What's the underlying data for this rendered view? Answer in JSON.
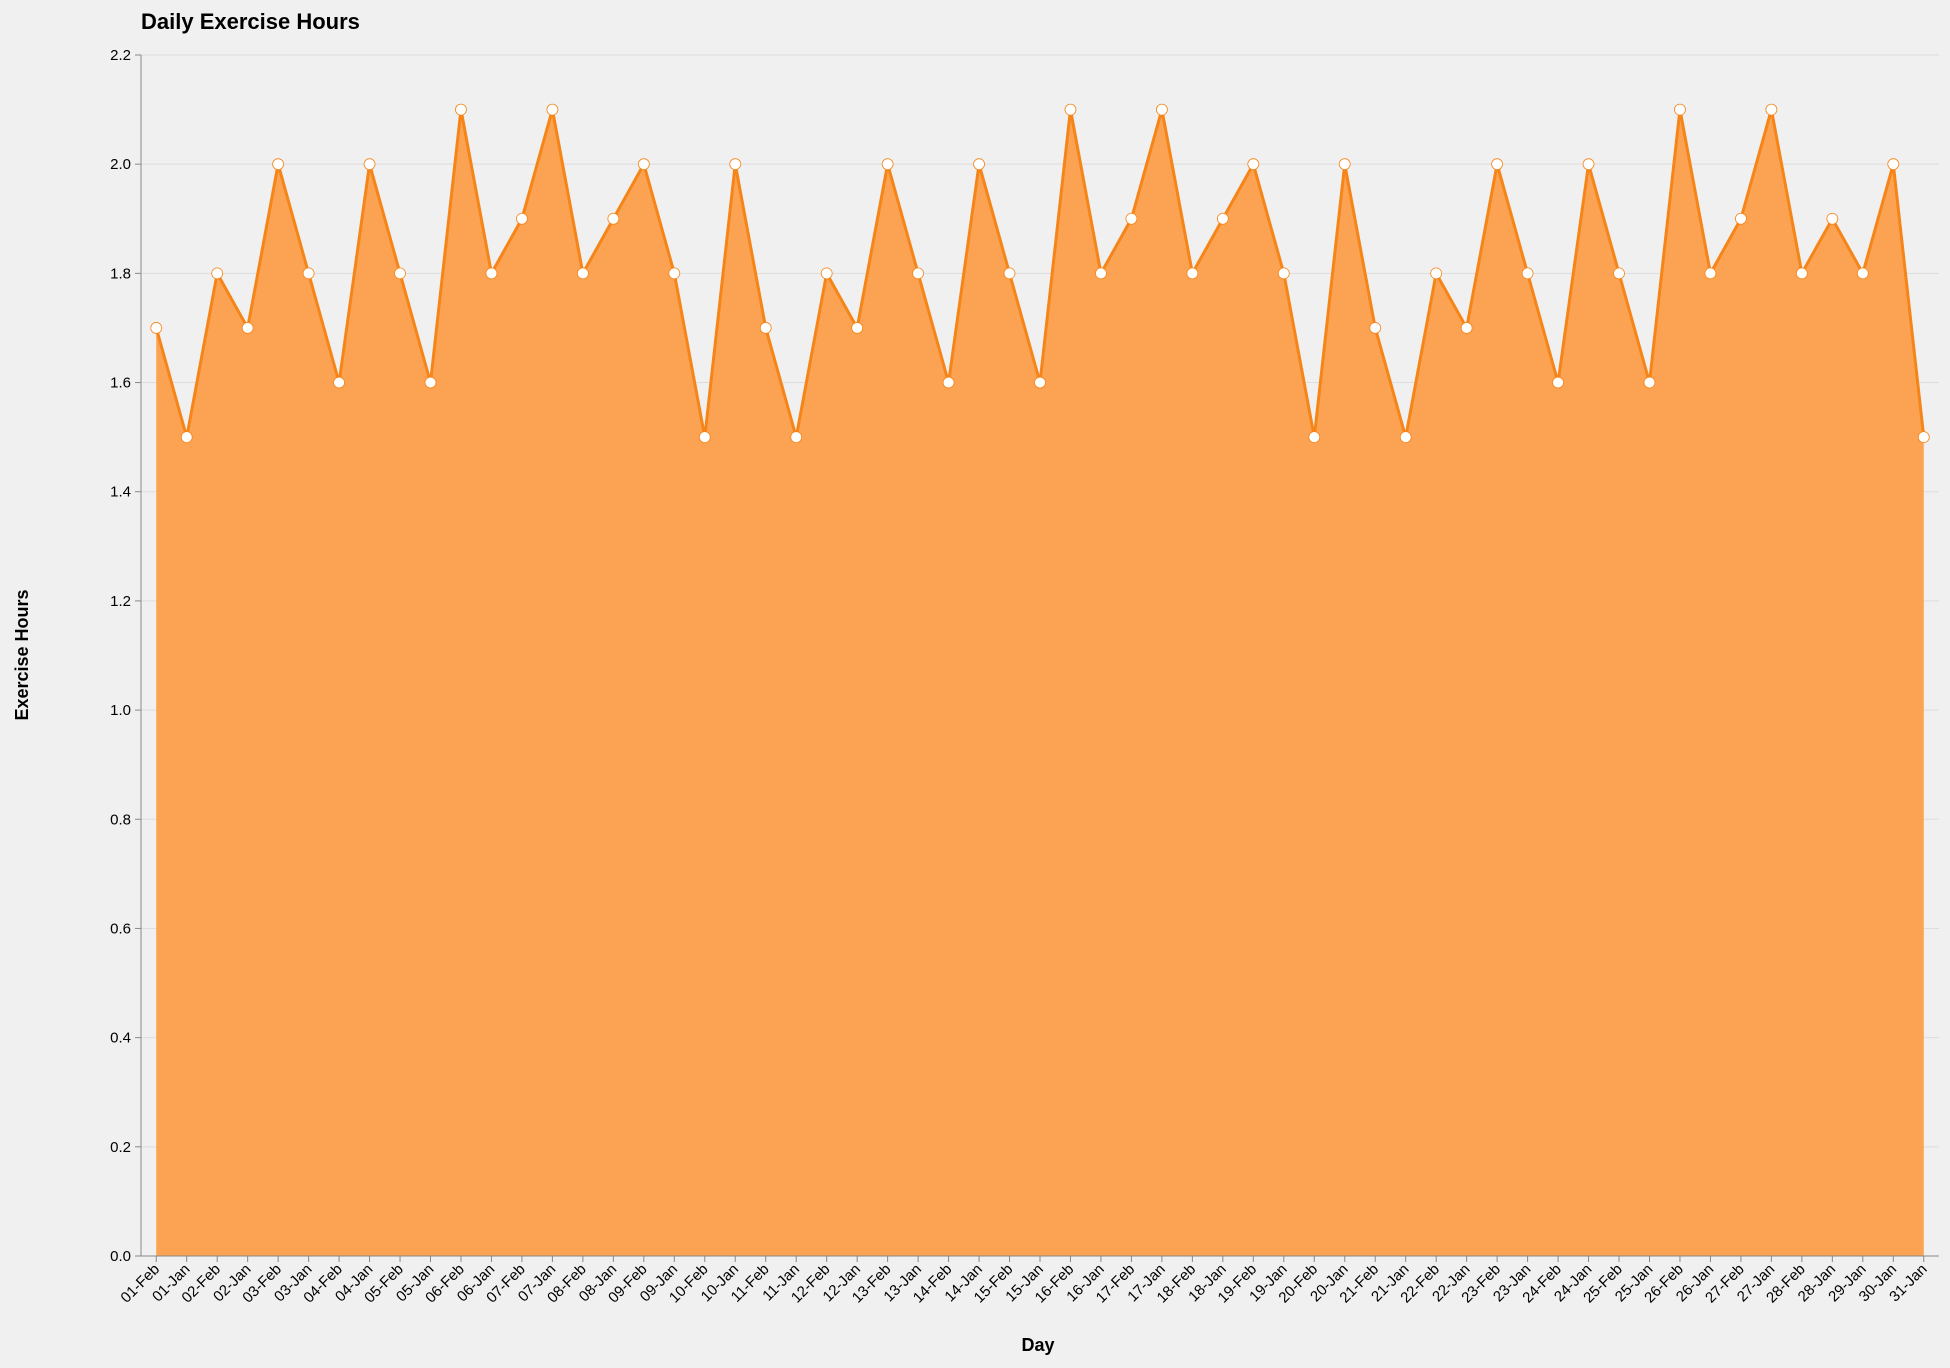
{
  "chart_data": {
    "type": "area",
    "title": "Daily Exercise Hours",
    "xlabel": "Day",
    "ylabel": "Exercise Hours",
    "ylim": [
      0,
      2.2
    ],
    "yticks": [
      0.0,
      0.2,
      0.4,
      0.6,
      0.8,
      1.0,
      1.2,
      1.4,
      1.6,
      1.8,
      2.0,
      2.2
    ],
    "grid": true,
    "legend": "none",
    "colors": {
      "fill": "#fba352",
      "line": "#f58518",
      "point": "#ffffff",
      "grid": "#dddddd",
      "axis": "#888888"
    },
    "categories": [
      "01-Feb",
      "01-Jan",
      "02-Feb",
      "02-Jan",
      "03-Feb",
      "03-Jan",
      "04-Feb",
      "04-Jan",
      "05-Feb",
      "05-Jan",
      "06-Feb",
      "06-Jan",
      "07-Feb",
      "07-Jan",
      "08-Feb",
      "08-Jan",
      "09-Feb",
      "09-Jan",
      "10-Feb",
      "10-Jan",
      "11-Feb",
      "11-Jan",
      "12-Feb",
      "12-Jan",
      "13-Feb",
      "13-Jan",
      "14-Feb",
      "14-Jan",
      "15-Feb",
      "15-Jan",
      "16-Feb",
      "16-Jan",
      "17-Feb",
      "17-Jan",
      "18-Feb",
      "18-Jan",
      "19-Feb",
      "19-Jan",
      "20-Feb",
      "20-Jan",
      "21-Feb",
      "21-Jan",
      "22-Feb",
      "22-Jan",
      "23-Feb",
      "23-Jan",
      "24-Feb",
      "24-Jan",
      "25-Feb",
      "25-Jan",
      "26-Feb",
      "26-Jan",
      "27-Feb",
      "27-Jan",
      "28-Feb",
      "28-Jan",
      "29-Jan",
      "30-Jan",
      "31-Jan"
    ],
    "values": [
      1.7,
      1.5,
      1.8,
      1.7,
      2.0,
      1.8,
      1.6,
      2.0,
      1.8,
      1.6,
      2.1,
      1.8,
      1.9,
      2.1,
      1.8,
      1.9,
      2.0,
      1.8,
      1.5,
      2.0,
      1.7,
      1.5,
      1.8,
      1.7,
      2.0,
      1.8,
      1.6,
      2.0,
      1.8,
      1.6,
      2.1,
      1.8,
      1.9,
      2.1,
      1.8,
      1.9,
      2.0,
      1.8,
      1.5,
      2.0,
      1.7,
      1.5,
      1.8,
      1.7,
      2.0,
      1.8,
      1.6,
      2.0,
      1.8,
      1.6,
      2.1,
      1.8,
      1.9,
      2.1,
      1.8,
      1.9,
      1.8,
      2.0,
      1.5
    ]
  }
}
